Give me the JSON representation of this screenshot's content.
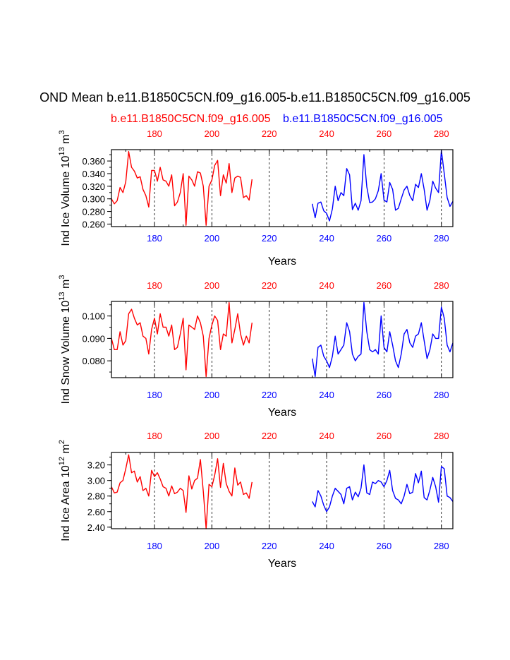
{
  "title": "OND Mean b.e11.B1850C5CN.f09_g16.005-b.e11.B1850C5CN.f09_g16.005",
  "case1_label": "b.e11.B1850C5CN.f09_g16.005",
  "case2_label": "b.e11.B1850C5CN.f09_g16.005",
  "colors": {
    "case1": "#ff0000",
    "case2": "#0000ff",
    "axis": "#000000"
  },
  "chart_data": [
    {
      "type": "line",
      "ylabel_prefix": "Ind Ice Volume 10",
      "ylabel_exp": "13",
      "ylabel_unit": " m",
      "ylabel_unit_exp": "3",
      "xlabel": "Years",
      "xlim": [
        165,
        284
      ],
      "ylim": [
        0.256,
        0.378
      ],
      "yticks": [
        0.26,
        0.28,
        0.3,
        0.32,
        0.34,
        0.36
      ],
      "yticklabels": [
        "0.260",
        "0.280",
        "0.300",
        "0.320",
        "0.340",
        "0.360"
      ],
      "xticks": [
        180,
        200,
        220,
        240,
        260,
        280
      ],
      "xticklabels": [
        "180",
        "200",
        "220",
        "240",
        "260",
        "280"
      ],
      "vlines": [
        180,
        200,
        220,
        240,
        260,
        280
      ],
      "series": [
        {
          "name": "case1",
          "x_start": 165,
          "values": [
            0.3,
            0.292,
            0.297,
            0.318,
            0.31,
            0.327,
            0.375,
            0.35,
            0.344,
            0.333,
            0.335,
            0.315,
            0.305,
            0.287,
            0.345,
            0.345,
            0.328,
            0.35,
            0.33,
            0.328,
            0.32,
            0.338,
            0.289,
            0.295,
            0.31,
            0.34,
            0.258,
            0.336,
            0.33,
            0.32,
            0.343,
            0.341,
            0.32,
            0.258,
            0.32,
            0.33,
            0.353,
            0.361,
            0.305,
            0.338,
            0.325,
            0.356,
            0.31,
            0.333,
            0.336,
            0.334,
            0.302,
            0.305,
            0.298,
            0.331
          ]
        },
        {
          "name": "case2",
          "x_start": 235,
          "values": [
            0.292,
            0.27,
            0.293,
            0.295,
            0.281,
            0.277,
            0.265,
            0.284,
            0.32,
            0.297,
            0.31,
            0.305,
            0.348,
            0.338,
            0.283,
            0.293,
            0.282,
            0.297,
            0.37,
            0.319,
            0.294,
            0.295,
            0.3,
            0.313,
            0.34,
            0.298,
            0.295,
            0.326,
            0.315,
            0.282,
            0.285,
            0.3,
            0.314,
            0.32,
            0.305,
            0.297,
            0.323,
            0.318,
            0.34,
            0.315,
            0.282,
            0.298,
            0.328,
            0.317,
            0.31,
            0.377,
            0.34,
            0.302,
            0.288,
            0.296
          ]
        }
      ]
    },
    {
      "type": "line",
      "ylabel_prefix": "Ind Snow Volume 10",
      "ylabel_exp": "13",
      "ylabel_unit": " m",
      "ylabel_unit_exp": "3",
      "xlabel": "Years",
      "xlim": [
        165,
        284
      ],
      "ylim": [
        0.0725,
        0.1065
      ],
      "yticks": [
        0.08,
        0.09,
        0.1
      ],
      "yticklabels": [
        "0.080",
        "0.090",
        "0.100"
      ],
      "xticks": [
        180,
        200,
        220,
        240,
        260,
        280
      ],
      "xticklabels": [
        "180",
        "200",
        "220",
        "240",
        "260",
        "280"
      ],
      "vlines": [
        180,
        200,
        220,
        240,
        260,
        280
      ],
      "series": [
        {
          "name": "case1",
          "x_start": 165,
          "values": [
            0.09,
            0.085,
            0.085,
            0.093,
            0.087,
            0.089,
            0.101,
            0.103,
            0.099,
            0.096,
            0.097,
            0.091,
            0.09,
            0.083,
            0.094,
            0.099,
            0.092,
            0.101,
            0.095,
            0.095,
            0.091,
            0.096,
            0.085,
            0.086,
            0.092,
            0.099,
            0.076,
            0.096,
            0.095,
            0.094,
            0.1,
            0.097,
            0.091,
            0.073,
            0.09,
            0.096,
            0.1,
            0.098,
            0.085,
            0.092,
            0.091,
            0.106,
            0.088,
            0.094,
            0.101,
            0.092,
            0.087,
            0.091,
            0.088,
            0.097
          ]
        },
        {
          "name": "case2",
          "x_start": 235,
          "values": [
            0.081,
            0.073,
            0.086,
            0.087,
            0.082,
            0.08,
            0.077,
            0.082,
            0.091,
            0.083,
            0.085,
            0.087,
            0.097,
            0.093,
            0.083,
            0.08,
            0.082,
            0.083,
            0.106,
            0.093,
            0.085,
            0.084,
            0.085,
            0.083,
            0.1,
            0.086,
            0.084,
            0.093,
            0.087,
            0.08,
            0.077,
            0.083,
            0.092,
            0.094,
            0.088,
            0.086,
            0.091,
            0.092,
            0.097,
            0.089,
            0.081,
            0.085,
            0.092,
            0.09,
            0.09,
            0.104,
            0.099,
            0.087,
            0.084,
            0.088
          ]
        }
      ]
    },
    {
      "type": "line",
      "ylabel_prefix": "Ind Ice Area 10",
      "ylabel_exp": "12",
      "ylabel_unit": " m",
      "ylabel_unit_exp": "2",
      "xlabel": "Years",
      "xlim": [
        165,
        284
      ],
      "ylim": [
        2.38,
        3.36
      ],
      "yticks": [
        2.4,
        2.6,
        2.8,
        3.0,
        3.2
      ],
      "yticklabels": [
        "2.40",
        "2.60",
        "2.80",
        "3.00",
        "3.20"
      ],
      "xticks": [
        180,
        200,
        220,
        240,
        260,
        280
      ],
      "xticklabels": [
        "180",
        "200",
        "220",
        "240",
        "260",
        "280"
      ],
      "vlines": [
        180,
        200,
        220,
        240,
        260,
        280
      ],
      "series": [
        {
          "name": "case1",
          "x_start": 165,
          "values": [
            2.92,
            2.84,
            2.85,
            2.97,
            3.0,
            3.15,
            3.33,
            3.1,
            3.12,
            2.98,
            3.05,
            2.87,
            2.9,
            2.8,
            3.13,
            3.05,
            3.1,
            3.02,
            2.92,
            2.9,
            2.8,
            2.93,
            2.83,
            2.85,
            2.9,
            2.87,
            2.59,
            3.06,
            2.89,
            3.0,
            3.03,
            3.27,
            2.86,
            2.38,
            2.95,
            2.92,
            3.07,
            3.28,
            2.91,
            3.22,
            2.96,
            2.86,
            2.8,
            3.16,
            2.94,
            2.98,
            2.82,
            2.84,
            2.77,
            2.98
          ]
        },
        {
          "name": "case2",
          "x_start": 235,
          "values": [
            2.73,
            2.66,
            2.87,
            2.8,
            2.68,
            2.6,
            2.66,
            2.8,
            2.9,
            2.86,
            2.82,
            2.7,
            2.9,
            2.92,
            2.75,
            2.85,
            2.79,
            2.9,
            3.2,
            2.84,
            2.82,
            2.98,
            2.96,
            3.0,
            2.98,
            2.92,
            3.0,
            3.13,
            2.87,
            2.77,
            2.75,
            2.7,
            2.8,
            2.95,
            2.83,
            2.85,
            3.09,
            2.97,
            3.12,
            2.78,
            2.75,
            2.88,
            3.04,
            2.92,
            2.72,
            3.18,
            3.15,
            2.8,
            2.78,
            2.73
          ]
        }
      ]
    }
  ]
}
